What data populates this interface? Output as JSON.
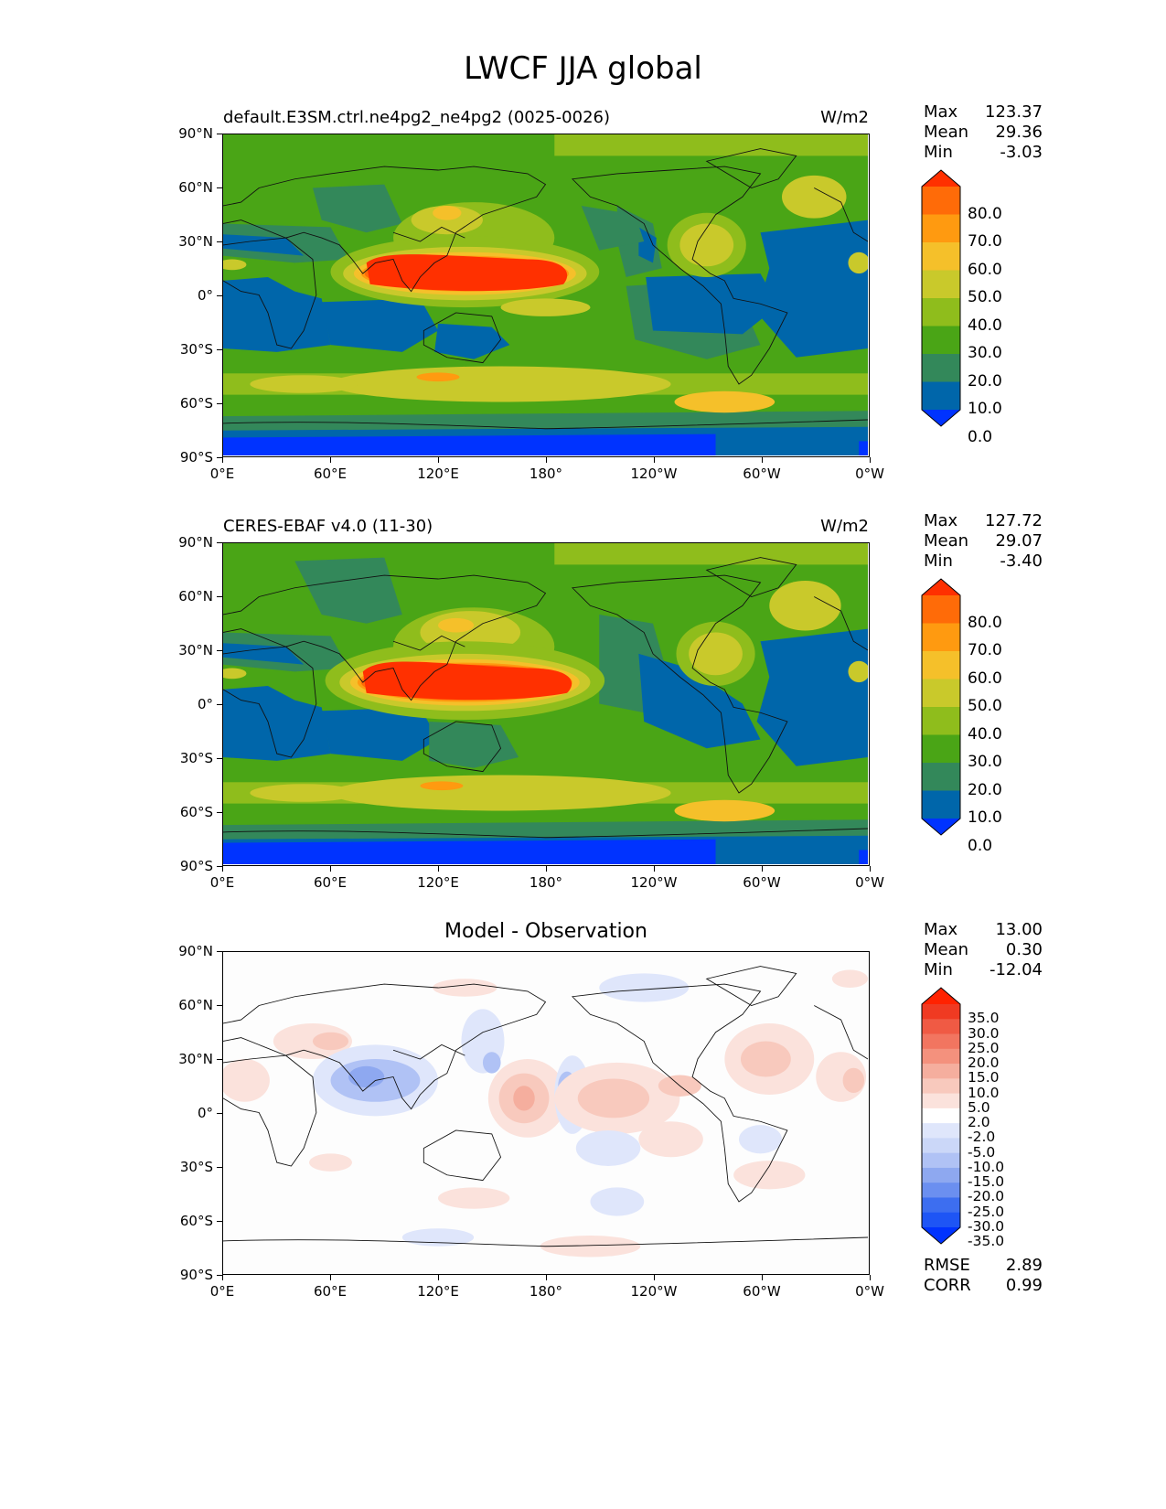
{
  "figure_title": "LWCF JJA global",
  "axes": {
    "y_ticks": [
      "90°N",
      "60°N",
      "30°N",
      "0°",
      "30°S",
      "60°S",
      "90°S"
    ],
    "x_ticks": [
      "0°E",
      "60°E",
      "120°E",
      "180°",
      "120°W",
      "60°W",
      "0°W"
    ]
  },
  "colors": {
    "top_levels": [
      "#0033ff",
      "#0066aa",
      "#33885a",
      "#4aa516",
      "#8fbd1c",
      "#c9c92b",
      "#f5c02a",
      "#ff9a10",
      "#ff6b08",
      "#ff3000"
    ],
    "diff_neg": [
      "#0033ff",
      "#1e55f5",
      "#3d6ef0",
      "#6b8ff0",
      "#8ea8f0",
      "#b0c2f5",
      "#cbd7f8",
      "#dfe6fb",
      "#f2f5fd"
    ],
    "diff_pos": [
      "#fdf2f0",
      "#fbe2dc",
      "#f8c9bd",
      "#f5ae9e",
      "#f4917d",
      "#f27560",
      "#f05a44",
      "#f03a22",
      "#ff2200"
    ]
  },
  "panels": [
    {
      "title": "default.E3SM.ctrl.ne4pg2_ne4pg2 (0025-0026)",
      "units": "W/m2",
      "stats": {
        "max_label": "Max",
        "max": "123.37",
        "mean_label": "Mean",
        "mean": "29.36",
        "min_label": "Min",
        "min": "-3.03"
      },
      "colorbar_labels": [
        "80.0",
        "70.0",
        "60.0",
        "50.0",
        "40.0",
        "30.0",
        "20.0",
        "10.0",
        "0.0"
      ]
    },
    {
      "title": "CERES-EBAF v4.0 (11-30)",
      "units": "W/m2",
      "stats": {
        "max_label": "Max",
        "max": "127.72",
        "mean_label": "Mean",
        "mean": "29.07",
        "min_label": "Min",
        "min": "-3.40"
      },
      "colorbar_labels": [
        "80.0",
        "70.0",
        "60.0",
        "50.0",
        "40.0",
        "30.0",
        "20.0",
        "10.0",
        "0.0"
      ]
    },
    {
      "title": "Model - Observation",
      "stats": {
        "max_label": "Max",
        "max": "13.00",
        "mean_label": "Mean",
        "mean": "0.30",
        "min_label": "Min",
        "min": "-12.04"
      },
      "colorbar_labels": [
        "35.0",
        "30.0",
        "25.0",
        "20.0",
        "15.0",
        "10.0",
        "5.0",
        "2.0",
        "-2.0",
        "-5.0",
        "-10.0",
        "-15.0",
        "-20.0",
        "-25.0",
        "-30.0",
        "-35.0"
      ],
      "metrics": {
        "rmse_label": "RMSE",
        "rmse": "2.89",
        "corr_label": "CORR",
        "corr": "0.99"
      }
    }
  ],
  "chart_data": [
    {
      "type": "heatmap",
      "title": "default.E3SM.ctrl.ne4pg2_ne4pg2 (0025-0026)",
      "units": "W/m2",
      "xlim": [
        0,
        360
      ],
      "ylim": [
        -90,
        90
      ],
      "color_levels": [
        0,
        10,
        20,
        30,
        40,
        50,
        60,
        70,
        80
      ],
      "regions": [
        {
          "name": "Western Pacific warm pool",
          "lon": [
            75,
            195
          ],
          "lat": [
            0,
            25
          ],
          "value": 85
        },
        {
          "name": "Southern Ocean storm track",
          "lon": [
            60,
            300
          ],
          "lat": [
            -60,
            -40
          ],
          "value": 45
        },
        {
          "name": "Subtropical SE Pacific/Atlantic",
          "lon": [
            250,
            360
          ],
          "lat": [
            -30,
            10
          ],
          "value": 8
        },
        {
          "name": "Antarctica",
          "lon": [
            0,
            360
          ],
          "lat": [
            -90,
            -75
          ],
          "value": -2
        }
      ],
      "stats": {
        "max": 123.37,
        "mean": 29.36,
        "min": -3.03
      }
    },
    {
      "type": "heatmap",
      "title": "CERES-EBAF v4.0 (11-30)",
      "units": "W/m2",
      "xlim": [
        0,
        360
      ],
      "ylim": [
        -90,
        90
      ],
      "color_levels": [
        0,
        10,
        20,
        30,
        40,
        50,
        60,
        70,
        80
      ],
      "regions": [
        {
          "name": "Western Pacific warm pool",
          "lon": [
            75,
            200
          ],
          "lat": [
            0,
            25
          ],
          "value": 85
        },
        {
          "name": "Southern Ocean storm track",
          "lon": [
            60,
            300
          ],
          "lat": [
            -60,
            -40
          ],
          "value": 45
        },
        {
          "name": "Subtropical SE Pacific/Atlantic",
          "lon": [
            250,
            360
          ],
          "lat": [
            -30,
            10
          ],
          "value": 8
        },
        {
          "name": "Antarctica",
          "lon": [
            0,
            360
          ],
          "lat": [
            -90,
            -75
          ],
          "value": -2
        }
      ],
      "stats": {
        "max": 127.72,
        "mean": 29.07,
        "min": -3.4
      }
    },
    {
      "type": "heatmap",
      "title": "Model - Observation",
      "xlim": [
        0,
        360
      ],
      "ylim": [
        -90,
        90
      ],
      "color_levels": [
        -35,
        -30,
        -25,
        -20,
        -15,
        -10,
        -5,
        -2,
        2,
        5,
        10,
        15,
        20,
        25,
        30,
        35
      ],
      "regions": [
        {
          "name": "Indian Ocean / Bay of Bengal",
          "lon": [
            60,
            120
          ],
          "lat": [
            0,
            25
          ],
          "value": -12
        },
        {
          "name": "Central Pacific",
          "lon": [
            150,
            180
          ],
          "lat": [
            -5,
            15
          ],
          "value": 12
        },
        {
          "name": "Eastern Pacific",
          "lon": [
            200,
            245
          ],
          "lat": [
            5,
            20
          ],
          "value": 8
        },
        {
          "name": "North Atlantic",
          "lon": [
            290,
            320
          ],
          "lat": [
            15,
            35
          ],
          "value": 8
        },
        {
          "name": "Amazon",
          "lon": [
            290,
            310
          ],
          "lat": [
            -10,
            5
          ],
          "value": -5
        }
      ],
      "stats": {
        "max": 13.0,
        "mean": 0.3,
        "min": -12.04,
        "rmse": 2.89,
        "corr": 0.99
      }
    }
  ]
}
